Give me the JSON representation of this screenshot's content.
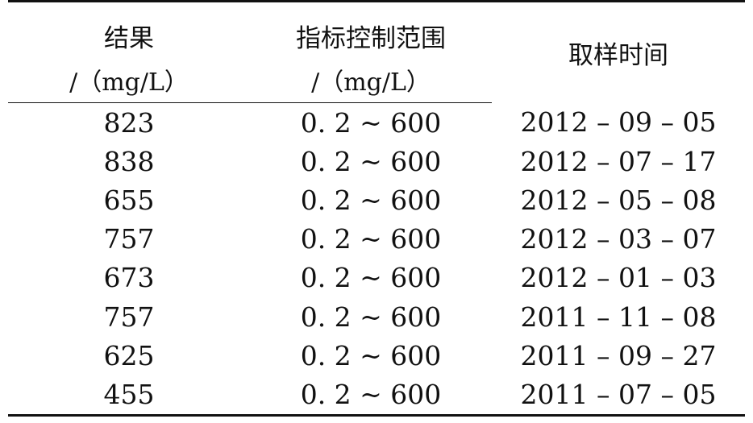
{
  "header": {
    "col1_title": "结果",
    "col1_unit": "/（mg/L）",
    "col2_title": "指标控制范围",
    "col2_unit": "/（mg/L）",
    "col3_title": "取样时间"
  },
  "rows": [
    {
      "result": "823",
      "range": "0. 2 ~ 600",
      "date": "2012 – 09 – 05"
    },
    {
      "result": "838",
      "range": "0. 2 ~ 600",
      "date": "2012 – 07 – 17"
    },
    {
      "result": "655",
      "range": "0. 2 ~ 600",
      "date": "2012 – 05 – 08"
    },
    {
      "result": "757",
      "range": "0. 2 ~ 600",
      "date": "2012 – 03 – 07"
    },
    {
      "result": "673",
      "range": "0. 2 ~ 600",
      "date": "2012 – 01 – 03"
    },
    {
      "result": "757",
      "range": "0. 2 ~ 600",
      "date": "2011 – 11 – 08"
    },
    {
      "result": "625",
      "range": "0. 2 ~ 600",
      "date": "2011 – 09 – 27"
    },
    {
      "result": "455",
      "range": "0. 2 ~ 600",
      "date": "2011 – 07 – 05"
    }
  ]
}
